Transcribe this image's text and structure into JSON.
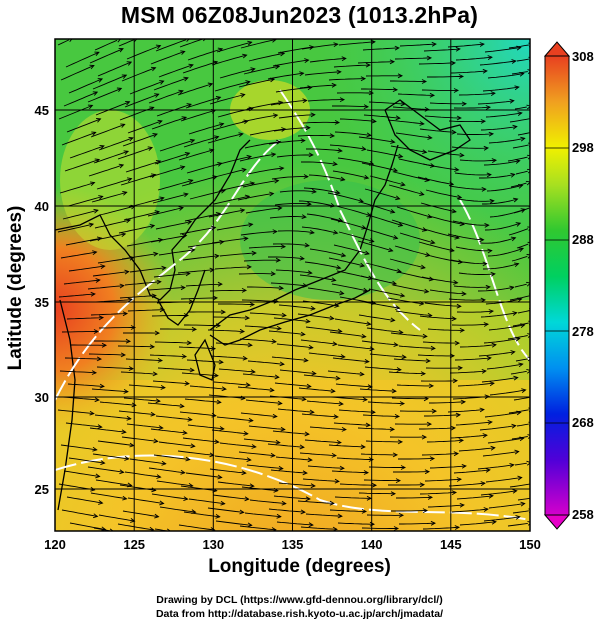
{
  "title": "MSM 06Z08Jun2023 (1013.2hPa)",
  "chart_data": {
    "type": "heatmap",
    "title": "MSM 06Z08Jun2023 (1013.2hPa)",
    "xlabel": "Longitude (degrees)",
    "ylabel": "Latitude  (degrees)",
    "xlim": [
      120,
      150
    ],
    "ylim": [
      22.4,
      47.6
    ],
    "x_ticks": [
      "120",
      "125",
      "130",
      "135",
      "140",
      "145",
      "150"
    ],
    "y_ticks": [
      "25",
      "30",
      "35",
      "40",
      "45"
    ],
    "colorbar": {
      "ticks": [
        "258",
        "268",
        "278",
        "288",
        "298",
        "308"
      ],
      "range": [
        258,
        308
      ]
    },
    "grid": true,
    "overlays": [
      "coastlines",
      "wind streamlines",
      "contours"
    ]
  },
  "credits": {
    "line1": "Drawing by DCL (https://www.gfd-dennou.org/library/dcl/)",
    "line2": "Data from http://database.rish.kyoto-u.ac.jp/arch/jmadata/"
  },
  "colors": {
    "cold": "#d400cc",
    "cool": "#00d0e0",
    "mid": "#22c83c",
    "warm": "#e8e800",
    "hot": "#e84020"
  }
}
